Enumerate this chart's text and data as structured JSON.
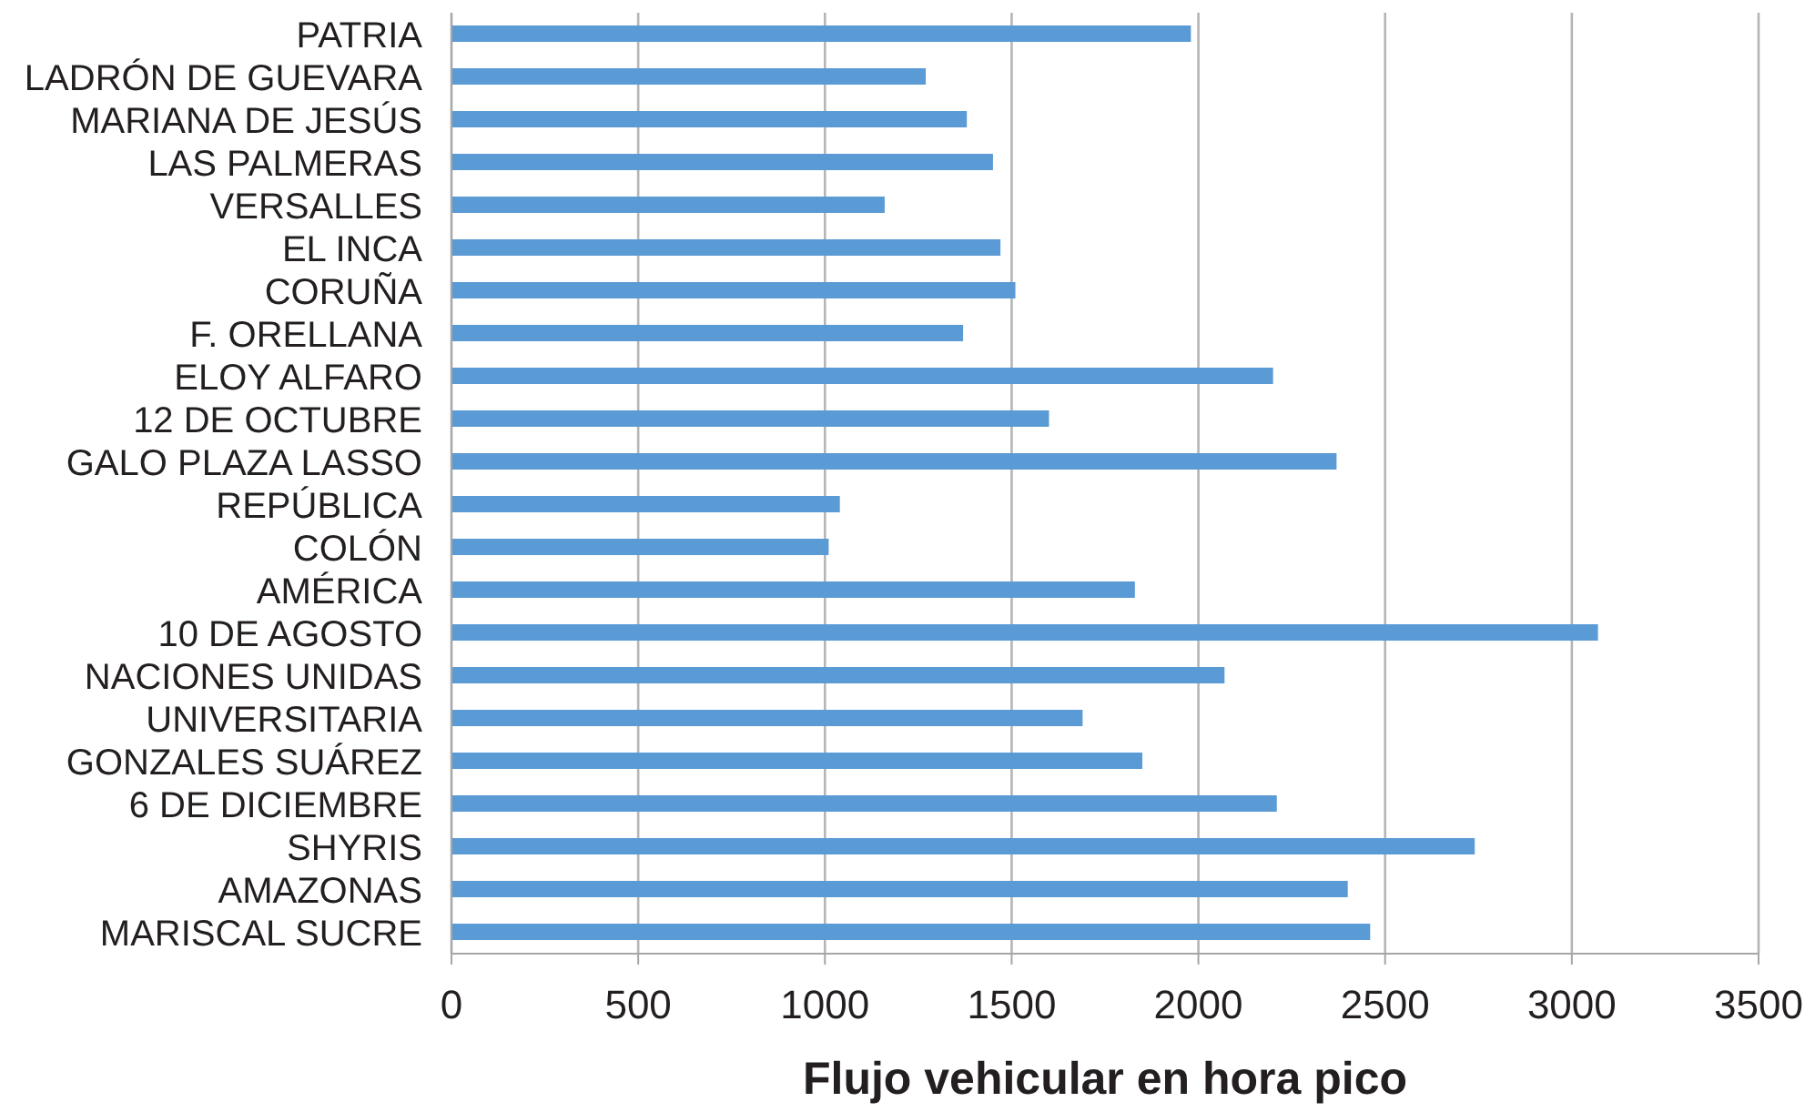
{
  "chart_data": {
    "type": "bar",
    "orientation": "horizontal",
    "xlabel": "Flujo vehicular en hora pico",
    "categories": [
      "PATRIA",
      "LADRÓN DE GUEVARA",
      "MARIANA DE JESÚS",
      "LAS PALMERAS",
      "VERSALLES",
      "EL INCA",
      "CORUÑA",
      "F. ORELLANA",
      "ELOY ALFARO",
      "12 DE OCTUBRE",
      "GALO PLAZA LASSO",
      "REPÚBLICA",
      "COLÓN",
      "AMÉRICA",
      "10 DE AGOSTO",
      "NACIONES UNIDAS",
      "UNIVERSITARIA",
      "GONZALES SUÁREZ",
      "6 DE DICIEMBRE",
      "SHYRIS",
      "AMAZONAS",
      "MARISCAL SUCRE"
    ],
    "values": [
      1980,
      1270,
      1380,
      1450,
      1160,
      1470,
      1510,
      1370,
      2200,
      1600,
      2370,
      1040,
      1010,
      1830,
      3070,
      2070,
      1690,
      1850,
      2210,
      2740,
      2400,
      2460
    ],
    "color": "#5b9bd5",
    "xlim": [
      0,
      3500
    ],
    "xticks": [
      0,
      500,
      1000,
      1500,
      2000,
      2500,
      3000,
      3500
    ],
    "grid": "x"
  }
}
